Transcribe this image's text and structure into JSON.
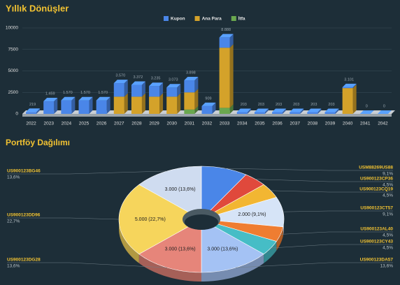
{
  "chart_data": [
    {
      "type": "bar",
      "title": "Yıllık Dönüşler",
      "stacked": true,
      "grid": true,
      "legend": "top",
      "categories": [
        "2022",
        "2023",
        "2024",
        "2025",
        "2026",
        "2027",
        "2028",
        "2029",
        "2030",
        "2031",
        "2032",
        "2033",
        "2034",
        "2035",
        "2036",
        "2037",
        "2038",
        "2039",
        "2040",
        "2041",
        "2042"
      ],
      "series": [
        {
          "name": "Kupon",
          "color": "#4a86e8",
          "values": [
            219,
            1459,
            1570,
            1570,
            1570,
            1570,
            1372,
            1235,
            1073,
            1398,
            909,
            1188,
            203,
            203,
            203,
            203,
            203,
            203,
            101,
            0,
            0
          ]
        },
        {
          "name": "Ana Para",
          "color": "#d4a22a",
          "values": [
            0,
            0,
            0,
            0,
            0,
            2000,
            2000,
            2000,
            2000,
            2000,
            0,
            7000,
            0,
            0,
            0,
            0,
            0,
            0,
            3000,
            0,
            0
          ]
        },
        {
          "name": "İtfa",
          "color": "#6aa84f",
          "values": [
            0,
            0,
            0,
            0,
            0,
            0,
            0,
            0,
            0,
            500,
            0,
            700,
            0,
            0,
            0,
            0,
            0,
            0,
            0,
            0,
            0
          ]
        }
      ],
      "totals": {
        "values": [
          219,
          1459,
          1570,
          1570,
          1570,
          3570,
          3372,
          3235,
          3073,
          3898,
          909,
          8888,
          203,
          203,
          203,
          203,
          203,
          203,
          3101,
          0,
          0
        ],
        "value_labels": [
          "219",
          "1.459",
          "1.570",
          "1.570",
          "1.570",
          "3.570",
          "3.372",
          "3.235",
          "3.073",
          "3.898",
          "909",
          "8.888",
          "203",
          "203",
          "203",
          "203",
          "203",
          "203",
          "3.101",
          "0",
          "0"
        ]
      },
      "ylim": [
        0,
        10000
      ],
      "yticks": [
        0,
        2500,
        5000,
        7500,
        10000
      ]
    },
    {
      "type": "pie",
      "title": "Portföy Dağılımı",
      "donut": true,
      "categories": [
        "USM88269US88",
        "US900123CP36",
        "US900123CQ19",
        "US900123CT57",
        "US900123AL40",
        "US900123CY43",
        "US900123DA57",
        "US900123DG28",
        "US900123DD96",
        "US900123BG46"
      ],
      "values": [
        2000,
        1000,
        1000,
        2000,
        1000,
        1000,
        3000,
        3000,
        5000,
        3000
      ],
      "colors": [
        "#4a86e8",
        "#e0493c",
        "#f2b632",
        "#d6e4f7",
        "#ef7d31",
        "#46bdc6",
        "#a4c2f4",
        "#e6857a",
        "#f6d55c",
        "#cfdcf0"
      ],
      "percent_labels": [
        "9,1%",
        "4,5%",
        "4,5%",
        "9,1%",
        "4,5%",
        "4,5%",
        "13,6%",
        "13,6%",
        "22,7%",
        "13,6%"
      ],
      "value_labels": [
        null,
        null,
        null,
        "2.000 (9,1%)",
        null,
        null,
        "3.000 (13,6%)",
        "3.000 (13,6%)",
        "5.000 (22,7%)",
        "3.000 (13,6%)"
      ]
    }
  ]
}
